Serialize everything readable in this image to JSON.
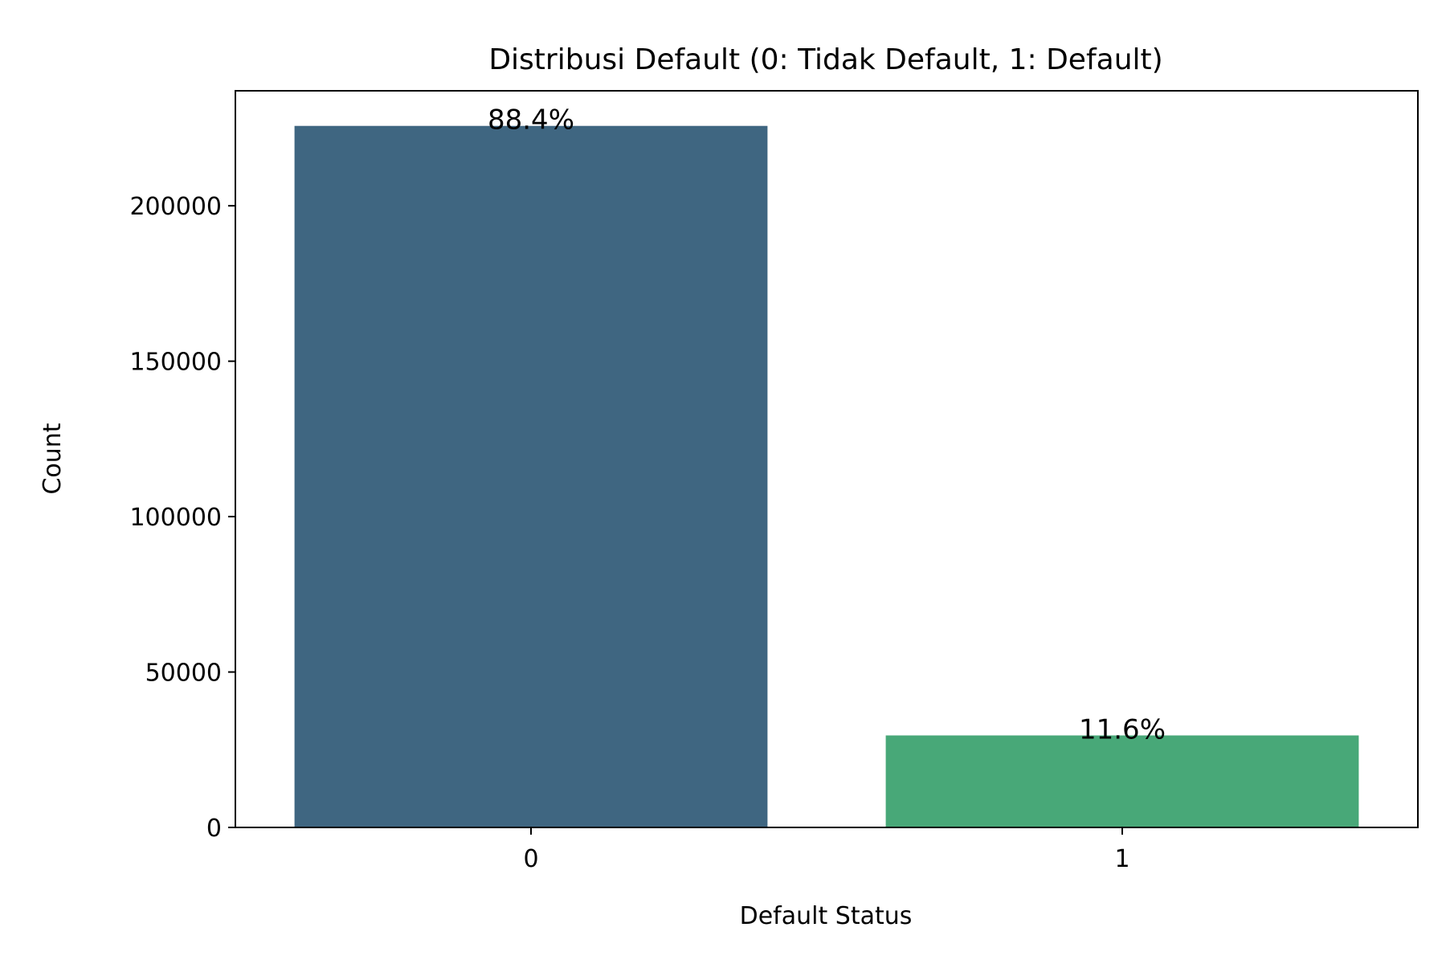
{
  "chart_data": {
    "type": "bar",
    "title": "Distribusi Default (0: Tidak Default, 1: Default)",
    "xlabel": "Default Status",
    "ylabel": "Count",
    "categories": [
      "0",
      "1"
    ],
    "values": [
      225700,
      29600
    ],
    "bar_labels": [
      "88.4%",
      "11.6%"
    ],
    "colors": [
      "#3f6681",
      "#48a878"
    ],
    "ylim": [
      0,
      237000
    ],
    "yticks": [
      0,
      50000,
      100000,
      150000,
      200000
    ],
    "ytick_labels": [
      "0",
      "50000",
      "100000",
      "150000",
      "200000"
    ],
    "grid": false,
    "legend": "none"
  }
}
